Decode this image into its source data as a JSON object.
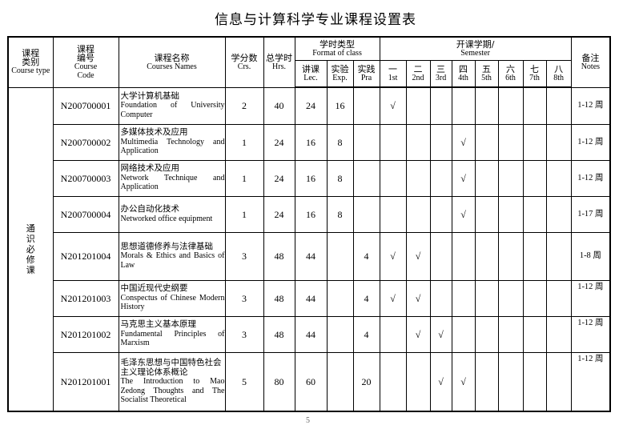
{
  "title": "信息与计算科学专业课程设置表",
  "header": {
    "course_type_cn": "课程类别",
    "course_type_en": "Course type",
    "code_cn": "课程编号",
    "code_en1": "Course",
    "code_en2": "Code",
    "name_cn": "课程名称",
    "name_en": "Courses Names",
    "credits_cn": "学分数",
    "credits_en": "Crs.",
    "hours_cn": "总学时",
    "hours_en": "Hrs.",
    "format_cn": "学时类型",
    "format_en": "Format of class",
    "lec_cn": "讲课",
    "lec_en": "Lec.",
    "exp_cn": "实验",
    "exp_en": "Exp.",
    "pra_cn": "实践",
    "pra_en": "Pra",
    "semester_cn": "开课学期/",
    "semester_en": "Semester",
    "semesters": [
      {
        "cn": "一",
        "en": "1st"
      },
      {
        "cn": "二",
        "en": "2nd"
      },
      {
        "cn": "三",
        "en": "3rd"
      },
      {
        "cn": "四",
        "en": "4th"
      },
      {
        "cn": "五",
        "en": "5th"
      },
      {
        "cn": "六",
        "en": "6th"
      },
      {
        "cn": "七",
        "en": "7th"
      },
      {
        "cn": "八",
        "en": "8th"
      }
    ],
    "notes_cn": "备注",
    "notes_en": "Notes"
  },
  "category": "通识必修课",
  "check_mark": "√",
  "rows": [
    {
      "code": "N200700001",
      "name_cn": "大学计算机基础",
      "name_en": "Foundation of University Computer",
      "credits": "2",
      "hours": "40",
      "lec": "24",
      "exp": "16",
      "pra": "",
      "semesters": [
        1
      ],
      "notes": "1-12 周"
    },
    {
      "code": "N200700002",
      "name_cn": "多媒体技术及应用",
      "name_en": "Multimedia Technology and Application",
      "credits": "1",
      "hours": "24",
      "lec": "16",
      "exp": "8",
      "pra": "",
      "semesters": [
        4
      ],
      "notes": "1-12 周"
    },
    {
      "code": "N200700003",
      "name_cn": "网络技术及应用",
      "name_en": "Network Technique and Application",
      "credits": "1",
      "hours": "24",
      "lec": "16",
      "exp": "8",
      "pra": "",
      "semesters": [
        4
      ],
      "notes": "1-12 周"
    },
    {
      "code": "N200700004",
      "name_cn": "办公自动化技术",
      "name_en": "Networked office equipment",
      "credits": "1",
      "hours": "24",
      "lec": "16",
      "exp": "8",
      "pra": "",
      "semesters": [
        4
      ],
      "notes": "1-17 周"
    },
    {
      "code": "N201201004",
      "name_cn": "思想道德修养与法律基础",
      "name_en": "Morals & Ethics and Basics of Law",
      "credits": "3",
      "hours": "48",
      "lec": "44",
      "exp": "",
      "pra": "4",
      "semesters": [
        1,
        2
      ],
      "notes": "1-8 周"
    },
    {
      "code": "N201201003",
      "name_cn": "中国近现代史纲要",
      "name_en": "Conspectus of Chinese Modern History",
      "credits": "3",
      "hours": "48",
      "lec": "44",
      "exp": "",
      "pra": "4",
      "semesters": [
        1,
        2
      ],
      "notes": "1-12 周",
      "notes_top": true
    },
    {
      "code": "N201201002",
      "name_cn": "马克思主义基本原理",
      "name_en": "Fundamental Principles of Marxism",
      "credits": "3",
      "hours": "48",
      "lec": "44",
      "exp": "",
      "pra": "4",
      "semesters": [
        2,
        3
      ],
      "notes": "1-12 周",
      "notes_top": true
    },
    {
      "code": "N201201001",
      "name_cn": "毛泽东思想与中国特色社会主义理论体系概论",
      "name_en": "The Introduction to Mao Zedong Thoughts and The Socialist Theoretical",
      "credits": "5",
      "hours": "80",
      "lec": "60",
      "exp": "",
      "pra": "20",
      "semesters": [
        3,
        4
      ],
      "notes": "1-12 周",
      "notes_top": true
    }
  ],
  "page_number": "5"
}
